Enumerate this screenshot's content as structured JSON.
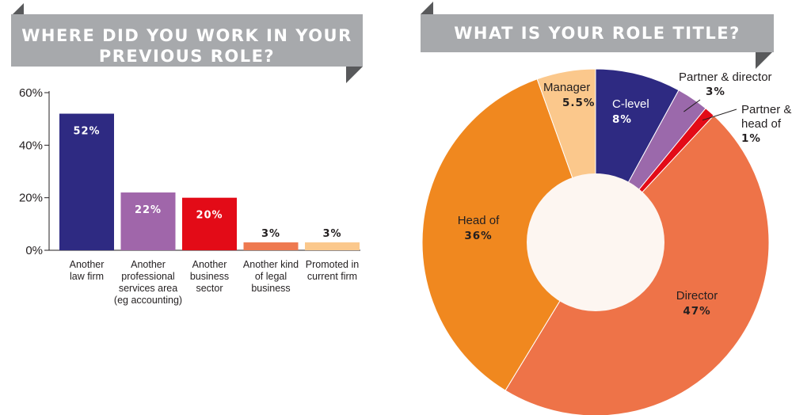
{
  "chart_data": [
    {
      "type": "bar",
      "title": [
        "WHERE DID YOU WORK IN YOUR",
        "PREVIOUS ROLE?"
      ],
      "ylim": [
        0,
        60
      ],
      "yticks": [
        "60%",
        "40%",
        "20%",
        "0%"
      ],
      "ytick_values": [
        60,
        40,
        20,
        0
      ],
      "categories": [
        [
          "Another",
          "law firm"
        ],
        [
          "Another",
          "professional",
          "services area",
          "(eg accounting)"
        ],
        [
          "Another",
          "business",
          "sector"
        ],
        [
          "Another kind",
          "of legal",
          "business"
        ],
        [
          "Promoted in",
          "current firm"
        ]
      ],
      "values": [
        52,
        22,
        20,
        3,
        3
      ],
      "value_labels": [
        "52%",
        "22%",
        "20%",
        "3%",
        "3%"
      ],
      "colors": [
        "#2e2a82",
        "#a066aa",
        "#e30b17",
        "#ee7950",
        "#fbc88c"
      ],
      "grid": false,
      "legend": "none"
    },
    {
      "type": "pie",
      "title": "WHAT IS YOUR ROLE TITLE?",
      "donut": true,
      "slices": [
        {
          "name": "C-level",
          "value": 8,
          "label": "8%",
          "color": "#2e2a82"
        },
        {
          "name": "Partner & director",
          "value": 3,
          "label": "3%",
          "color": "#9b69ab"
        },
        {
          "name": [
            "Partner &",
            "head of"
          ],
          "value": 1,
          "label": "1%",
          "color": "#e30b17"
        },
        {
          "name": "Director",
          "value": 47,
          "label": "47%",
          "color": "#ee7348"
        },
        {
          "name": "Head of",
          "value": 36,
          "label": "36%",
          "color": "#f0881f"
        },
        {
          "name": "Manager",
          "value": 5.5,
          "label": "5.5%",
          "color": "#fbc88c"
        }
      ],
      "center_color": "#fdf6f1",
      "legend": "none"
    }
  ]
}
